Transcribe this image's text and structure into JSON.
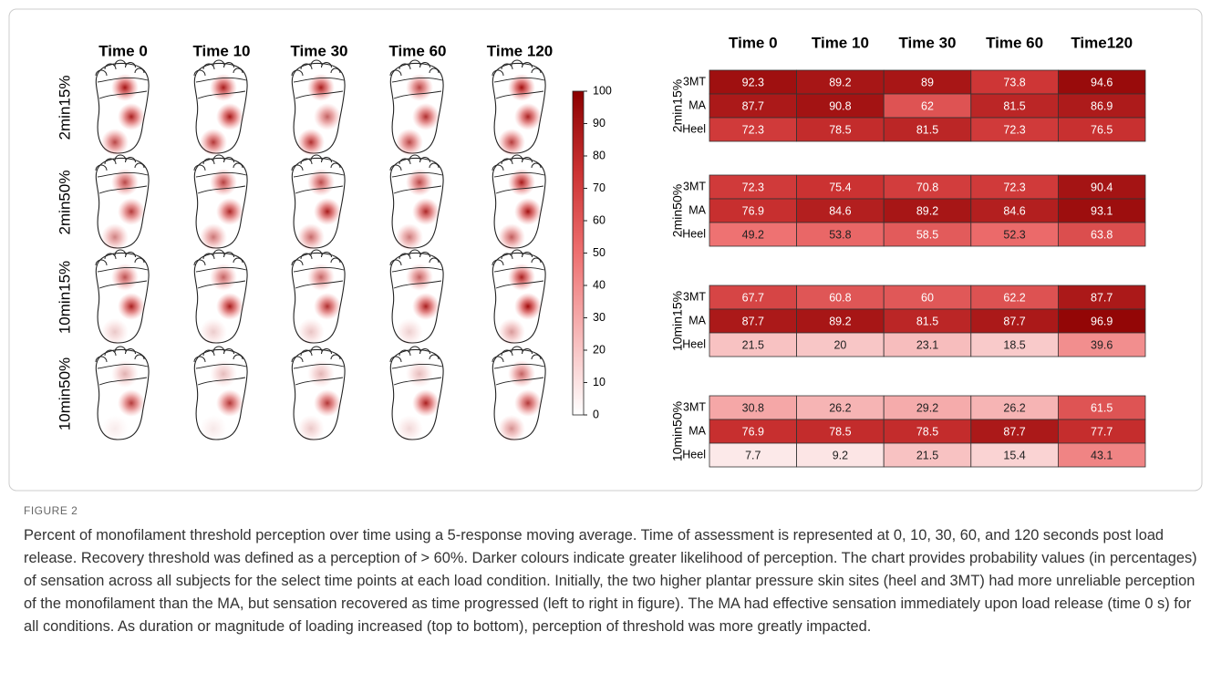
{
  "figure": {
    "label": "FIGURE 2",
    "caption": "Percent of monofilament threshold perception over time using a 5-response moving average. Time of assessment is represented at 0, 10, 30, 60, and 120 seconds post load release. Recovery threshold was defined as a perception of > 60%. Darker colours indicate greater likelihood of perception. The chart provides probability values (in percentages) of sensation across all subjects for the select time points at each load condition. Initially, the two higher plantar pressure skin sites (heel and 3MT) had more unreliable perception of the monofilament than the MA, but sensation recovered as time progressed (left to right in figure). The MA had effective sensation immediately upon load release (time 0 s) for all conditions. As duration or magnitude of loading increased (top to bottom), perception of threshold was more greatly impacted."
  },
  "heatmap": {
    "columns": [
      "Time 0",
      "Time 10",
      "Time 30",
      "Time 60",
      "Time 120"
    ],
    "colorbar": {
      "range": [
        0,
        100
      ],
      "ticks": [
        0,
        10,
        20,
        30,
        40,
        50,
        60,
        70,
        80,
        90,
        100
      ]
    }
  },
  "table": {
    "columns": [
      "Time 0",
      "Time 10",
      "Time 30",
      "Time 60",
      "Time120"
    ],
    "sites": [
      "3MT",
      "MA",
      "Heel"
    ],
    "groups": [
      {
        "name": "2min15%",
        "rows": [
          [
            92.3,
            89.2,
            89,
            73.8,
            94.6
          ],
          [
            87.7,
            90.8,
            62,
            81.5,
            86.9
          ],
          [
            72.3,
            78.5,
            81.5,
            72.3,
            76.5
          ]
        ]
      },
      {
        "name": "2min50%",
        "rows": [
          [
            72.3,
            75.4,
            70.8,
            72.3,
            90.4
          ],
          [
            76.9,
            84.6,
            89.2,
            84.6,
            93.1
          ],
          [
            49.2,
            53.8,
            58.5,
            52.3,
            63.8
          ]
        ]
      },
      {
        "name": "10min15%",
        "rows": [
          [
            67.7,
            60.8,
            60,
            62.2,
            87.7
          ],
          [
            87.7,
            89.2,
            81.5,
            87.7,
            96.9
          ],
          [
            21.5,
            20,
            23.1,
            18.5,
            39.6
          ]
        ]
      },
      {
        "name": "10min50%",
        "rows": [
          [
            30.8,
            26.2,
            29.2,
            26.2,
            61.5
          ],
          [
            76.9,
            78.5,
            78.5,
            87.7,
            77.7
          ],
          [
            7.7,
            9.2,
            21.5,
            15.4,
            43.1
          ]
        ]
      }
    ]
  }
}
